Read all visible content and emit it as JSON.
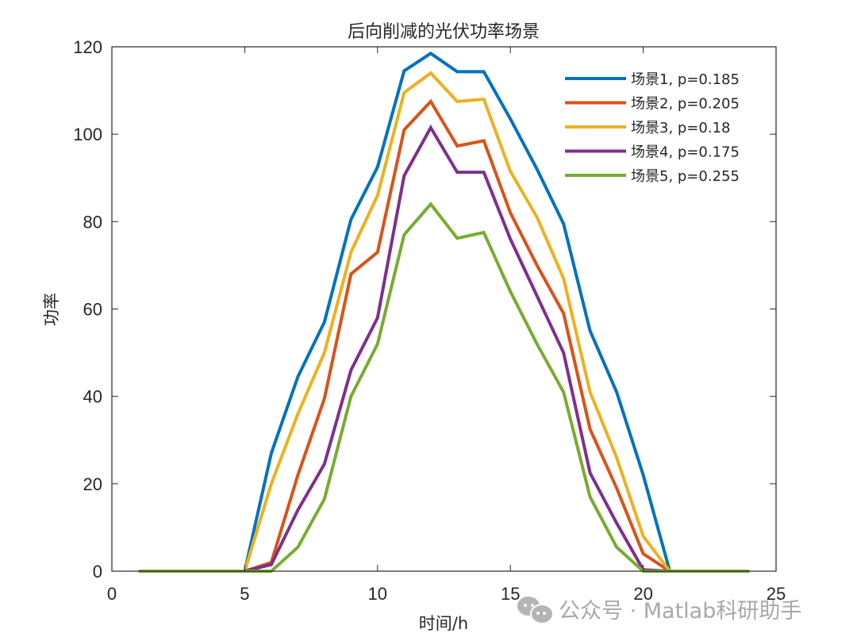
{
  "chart_data": {
    "type": "line",
    "title": "后向削减的光伏功率场景",
    "xlabel": "时间/h",
    "ylabel": "功率",
    "xlim": [
      0,
      25
    ],
    "ylim": [
      0,
      120
    ],
    "xticks": [
      0,
      5,
      10,
      15,
      20,
      25
    ],
    "yticks": [
      0,
      20,
      40,
      60,
      80,
      100,
      120
    ],
    "grid": false,
    "legend_position": "top-right",
    "x": [
      1,
      2,
      3,
      4,
      5,
      6,
      7,
      8,
      9,
      10,
      11,
      12,
      13,
      14,
      15,
      16,
      17,
      18,
      19,
      20,
      21,
      22,
      23,
      24
    ],
    "series": [
      {
        "name": "场景1, p=0.185",
        "color": "#0072BD",
        "values": [
          0,
          0,
          0,
          0,
          0,
          27,
          44.5,
          57,
          80.5,
          92.5,
          114.5,
          118.5,
          114.3,
          114.3,
          103.5,
          92,
          79.5,
          55,
          41,
          22,
          0,
          0,
          0,
          0
        ]
      },
      {
        "name": "场景2, p=0.205",
        "color": "#D95319",
        "values": [
          0,
          0,
          0,
          0,
          0,
          2,
          22,
          39.5,
          68,
          73,
          101,
          107.5,
          97.3,
          98.5,
          82,
          70,
          59,
          32.5,
          19,
          4,
          0,
          0,
          0,
          0
        ]
      },
      {
        "name": "场景3, p=0.18",
        "color": "#EDB120",
        "values": [
          0,
          0,
          0,
          0,
          0,
          20,
          36,
          50,
          73,
          86,
          109.5,
          114,
          107.5,
          108,
          91.5,
          81,
          67,
          41,
          26,
          8,
          0,
          0,
          0,
          0
        ]
      },
      {
        "name": "场景4, p=0.175",
        "color": "#7E2F8E",
        "values": [
          0,
          0,
          0,
          0,
          0,
          1.5,
          14,
          24.5,
          46,
          58,
          90.5,
          101.5,
          91.3,
          91.3,
          76,
          63,
          50,
          22.5,
          11,
          0.3,
          0,
          0,
          0,
          0
        ]
      },
      {
        "name": "场景5, p=0.255",
        "color": "#77AC30",
        "values": [
          0,
          0,
          0,
          0,
          0,
          0,
          5.5,
          16.5,
          40,
          52,
          77,
          84,
          76.2,
          77.5,
          64,
          52,
          41,
          17,
          5.5,
          0,
          0,
          0,
          0,
          0
        ]
      }
    ]
  },
  "watermark": {
    "icon": "wechat-icon",
    "text": "公众号 · Matlab科研助手"
  }
}
